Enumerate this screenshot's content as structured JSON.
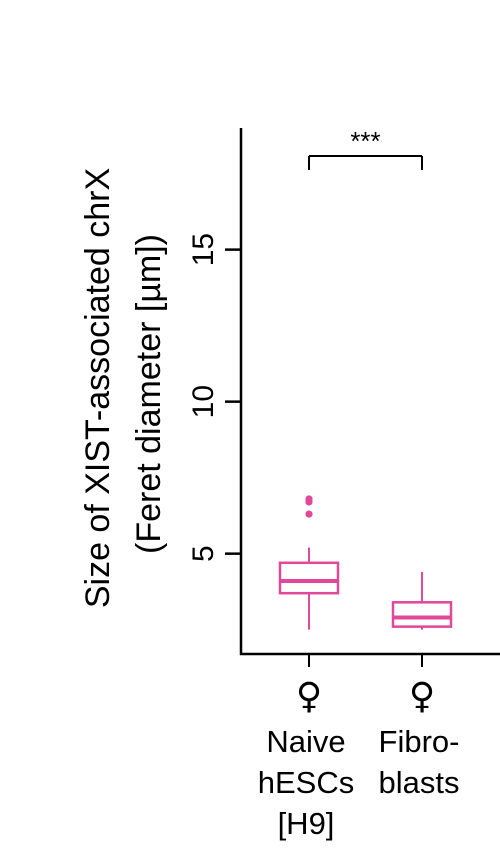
{
  "chart_data": {
    "type": "box",
    "ylabel_lines": [
      "Size of XIST-associated chrX",
      "(Feret diameter [µm])"
    ],
    "y_ticks": [
      5,
      10,
      15
    ],
    "y_tick_labels": [
      "5",
      "10",
      "15"
    ],
    "ylim": [
      1.7,
      19.0
    ],
    "categories": [
      {
        "lines": [
          "Naive",
          "hESCs",
          "[H9]"
        ],
        "symbol": "♀"
      },
      {
        "lines": [
          "Fibro-",
          "blasts"
        ],
        "symbol": "♀"
      }
    ],
    "series": [
      {
        "category": "Naive hESCs [H9]",
        "whisker_low": 2.5,
        "q1": 3.7,
        "median": 4.1,
        "q3": 4.7,
        "whisker_high": 5.2,
        "outliers": [
          6.3,
          6.7,
          6.8
        ]
      },
      {
        "category": "Fibroblasts",
        "whisker_low": 2.5,
        "q1": 2.6,
        "median": 2.9,
        "q3": 3.4,
        "whisker_high": 4.4,
        "outliers": []
      }
    ],
    "significance": {
      "label": "***",
      "between": [
        0,
        1
      ]
    },
    "box_color": "#e0489a",
    "grid": false
  }
}
